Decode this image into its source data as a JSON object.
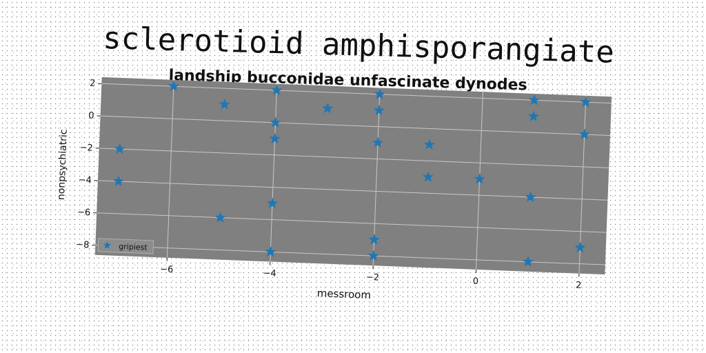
{
  "suptitle": "sclerotioid amphisporangiate",
  "chart_data": {
    "type": "scatter",
    "title": "landship bucconidae unfascinate dynodes",
    "xlabel": "messroom",
    "ylabel": "nonpsychiatric",
    "xlim": [
      -7.4,
      2.5
    ],
    "ylim": [
      -8.6,
      2.4
    ],
    "xticks": [
      -6,
      -4,
      -2,
      0,
      2
    ],
    "yticks": [
      -8,
      -6,
      -4,
      -2,
      0,
      2
    ],
    "grid": true,
    "legend_position": "lower-left",
    "series": [
      {
        "name": "gripiest",
        "marker": "star",
        "color": "#1f77b4",
        "x": [
          -7.0,
          -7.0,
          -6.0,
          -5.0,
          -5.0,
          -4.0,
          -4.0,
          -4.0,
          -4.0,
          -4.0,
          -3.0,
          -2.0,
          -2.0,
          -2.0,
          -2.0,
          -2.0,
          -1.0,
          -1.0,
          0.0,
          1.0,
          1.0,
          1.0,
          1.0,
          2.0,
          2.0,
          2.0
        ],
        "y": [
          -2.0,
          -4.0,
          2.0,
          1.0,
          -6.0,
          2.0,
          0.0,
          -1.0,
          -5.0,
          -8.0,
          1.0,
          2.0,
          1.0,
          -1.0,
          -7.0,
          -8.0,
          -1.0,
          -3.0,
          -3.0,
          2.0,
          1.0,
          -4.0,
          -8.0,
          2.0,
          0.0,
          -7.0
        ]
      }
    ]
  },
  "colors": {
    "plot_background": "#808080",
    "grid": "#c8c8c8",
    "marker": "#1f77b4"
  }
}
